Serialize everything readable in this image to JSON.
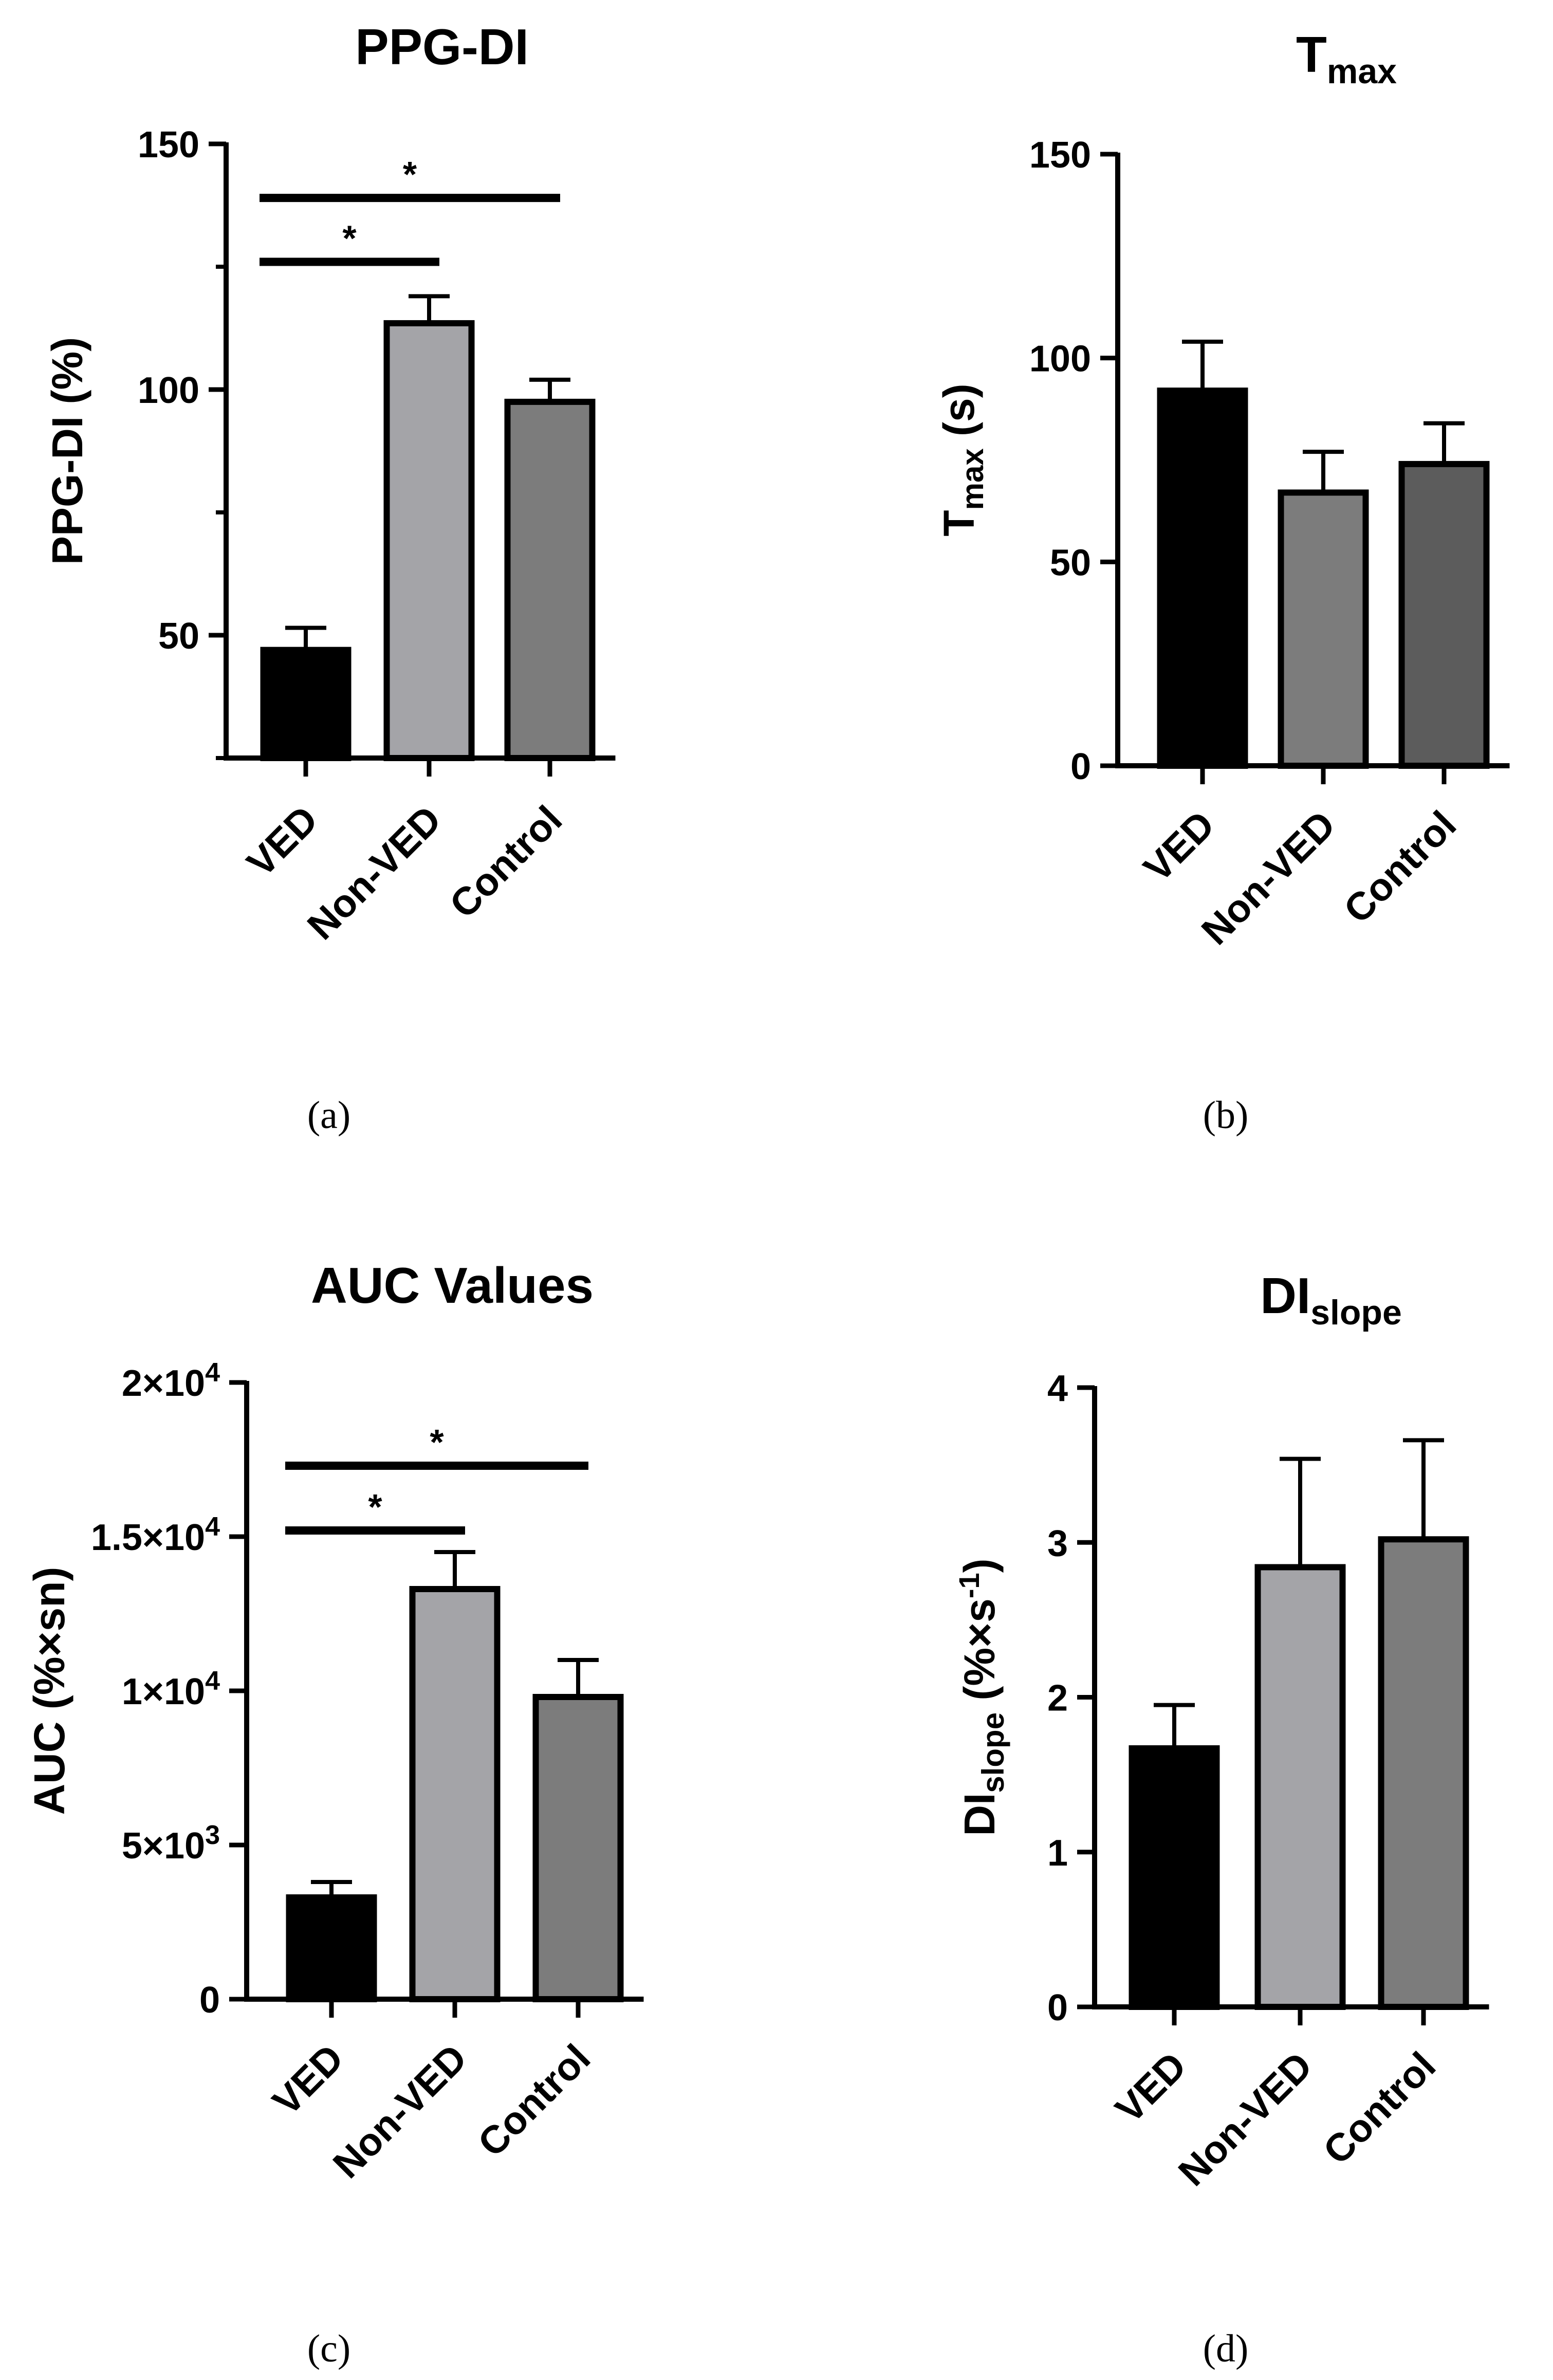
{
  "panels": [
    {
      "id": "a",
      "caption": "(a)",
      "title": {
        "main": "PPG-DI",
        "sub": ""
      },
      "ylabel": {
        "main": "PPG-DI (%)",
        "sub": "",
        "suffix": ""
      },
      "ticks": [
        {
          "value": 50,
          "label": "50"
        },
        {
          "value": 100,
          "label": "100"
        },
        {
          "value": 150,
          "label": "150"
        }
      ],
      "minor_ticks": [
        25,
        75,
        125
      ]
    },
    {
      "id": "b",
      "caption": "(b)",
      "title": {
        "main": "T",
        "sub": "max"
      },
      "ylabel": {
        "main": "T",
        "sub": "max",
        "suffix": " (s)"
      },
      "ticks": [
        {
          "value": 0,
          "label": "0"
        },
        {
          "value": 50,
          "label": "50"
        },
        {
          "value": 100,
          "label": "100"
        },
        {
          "value": 150,
          "label": "150"
        }
      ],
      "minor_ticks": []
    },
    {
      "id": "c",
      "caption": "(c)",
      "title": {
        "main": "AUC Values",
        "sub": ""
      },
      "ylabel": {
        "main": "AUC (%×sn)",
        "sub": "",
        "suffix": ""
      },
      "ticks": [
        {
          "value": 0,
          "label": "0",
          "base": "",
          "exp": ""
        },
        {
          "value": 5000,
          "label": "",
          "base": "5×10",
          "exp": "3"
        },
        {
          "value": 10000,
          "label": "",
          "base": "1×10",
          "exp": "4"
        },
        {
          "value": 15000,
          "label": "",
          "base": "1.5×10",
          "exp": "4"
        },
        {
          "value": 20000,
          "label": "",
          "base": "2×10",
          "exp": "4"
        }
      ],
      "minor_ticks": []
    },
    {
      "id": "d",
      "caption": "(d)",
      "title": {
        "main": "DI",
        "sub": "slope"
      },
      "ylabel": {
        "main": "DI",
        "sub": "slope",
        "suffix": " (%×s",
        "sup": "-1",
        "close": ")"
      },
      "ticks": [
        {
          "value": 0,
          "label": "0"
        },
        {
          "value": 1,
          "label": "1"
        },
        {
          "value": 2,
          "label": "2"
        },
        {
          "value": 3,
          "label": "3"
        },
        {
          "value": 4,
          "label": "4"
        }
      ],
      "minor_ticks": []
    }
  ],
  "chart_data": [
    {
      "panel": "a",
      "type": "bar",
      "title": "PPG-DI",
      "ylabel": "PPG-DI (%)",
      "categories": [
        "VED",
        "Non-VED",
        "Control"
      ],
      "values": [
        47,
        113.5,
        97.5
      ],
      "errors": [
        4.5,
        5.5,
        4.5
      ],
      "colors": [
        "#000000",
        "#a4a4a8",
        "#7c7c7c"
      ],
      "ylim": [
        25,
        150
      ],
      "significance": [
        {
          "from": 0,
          "to": 1,
          "label": "*",
          "y": 126
        },
        {
          "from": 0,
          "to": 2,
          "label": "*",
          "y": 139
        }
      ]
    },
    {
      "panel": "b",
      "type": "bar",
      "title": "Tmax",
      "ylabel": "Tmax (s)",
      "categories": [
        "VED",
        "Non-VED",
        "Control"
      ],
      "values": [
        92,
        67,
        74
      ],
      "errors": [
        12,
        10,
        10
      ],
      "colors": [
        "#000000",
        "#7c7c7c",
        "#5c5c5c"
      ],
      "ylim": [
        0,
        150
      ],
      "significance": []
    },
    {
      "panel": "c",
      "type": "bar",
      "title": "AUC Values",
      "ylabel": "AUC (%×sn)",
      "categories": [
        "VED",
        "Non-VED",
        "Control"
      ],
      "values": [
        3300,
        13300,
        9800
      ],
      "errors": [
        500,
        1200,
        1200
      ],
      "colors": [
        "#000000",
        "#a4a4a8",
        "#7c7c7c"
      ],
      "ylim": [
        0,
        20000
      ],
      "significance": [
        {
          "from": 0,
          "to": 1,
          "label": "*",
          "y": 15200
        },
        {
          "from": 0,
          "to": 2,
          "label": "*",
          "y": 17300
        }
      ]
    },
    {
      "panel": "d",
      "type": "bar",
      "title": "DIslope",
      "ylabel": "DIslope (%×s-1)",
      "categories": [
        "VED",
        "Non-VED",
        "Control"
      ],
      "values": [
        1.67,
        2.84,
        3.02
      ],
      "errors": [
        0.28,
        0.7,
        0.64
      ],
      "colors": [
        "#000000",
        "#a4a4a8",
        "#7c7c7c"
      ],
      "ylim": [
        0,
        4
      ],
      "significance": []
    }
  ]
}
